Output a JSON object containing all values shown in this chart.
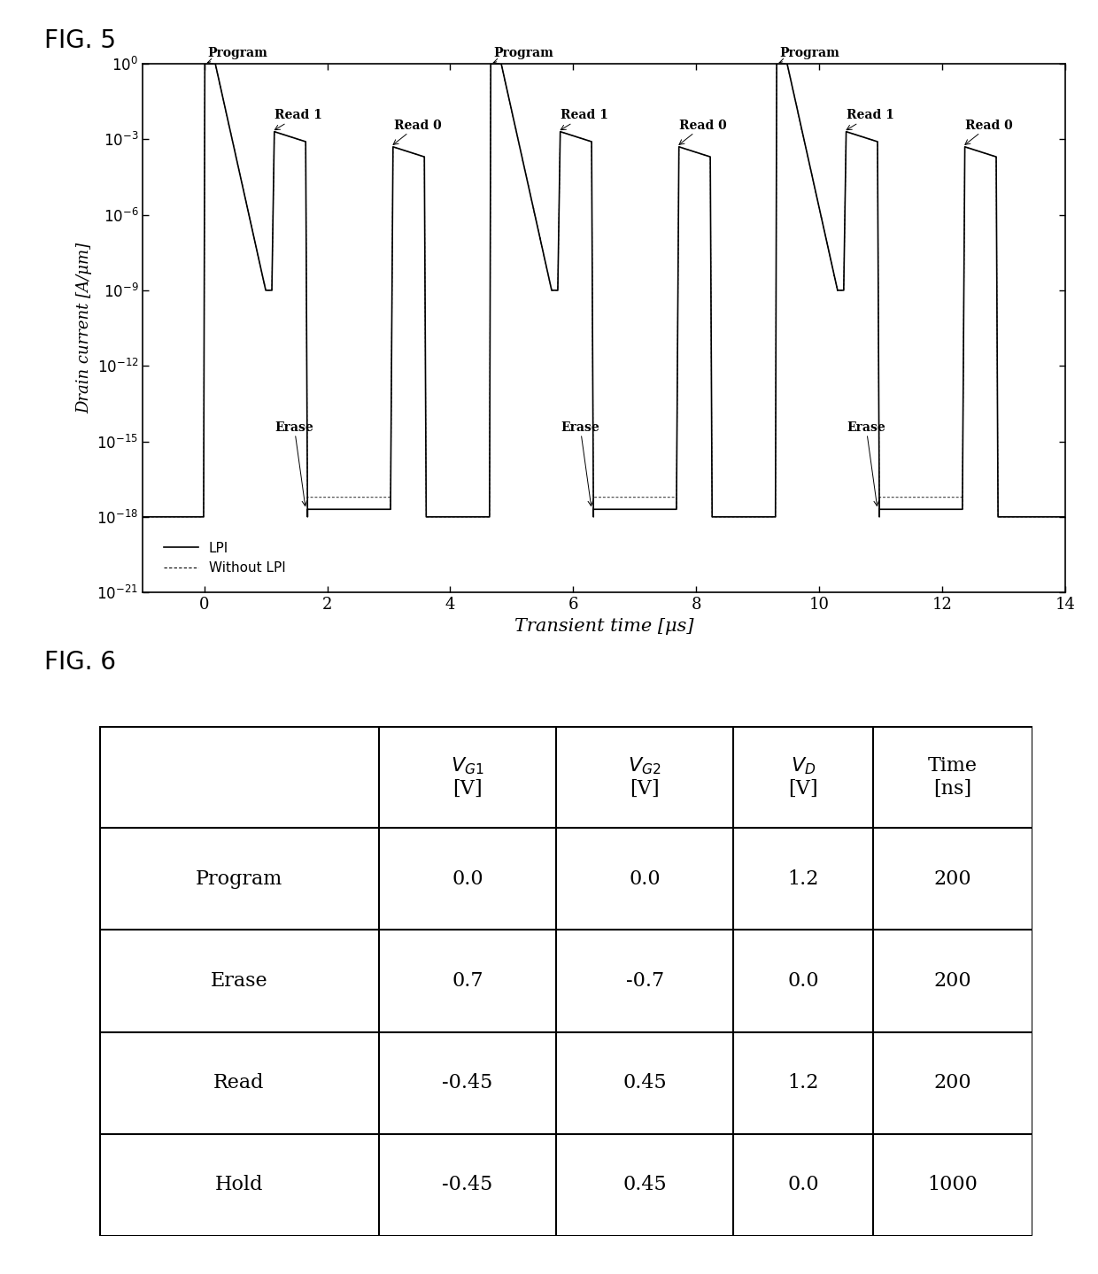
{
  "fig5_title": "FIG. 5",
  "fig6_title": "FIG. 6",
  "xlabel": "Transient time [μs]",
  "ylabel": "Drain current [A/μm]",
  "xmin": -1,
  "xmax": 14,
  "ymin_exp": -21,
  "ymax_exp": 0,
  "yticks_exp": [
    0,
    -3,
    -6,
    -9,
    -12,
    -15,
    -18,
    -21
  ],
  "xticks": [
    0,
    2,
    4,
    6,
    8,
    10,
    12,
    14
  ],
  "legend_lpi": "LPI",
  "legend_without": "Without LPI",
  "table_data": [
    [
      "Program",
      "0.0",
      "0.0",
      "1.2",
      "200"
    ],
    [
      "Erase",
      "0.7",
      "-0.7",
      "0.0",
      "200"
    ],
    [
      "Read",
      "-0.45",
      "0.45",
      "1.2",
      "200"
    ],
    [
      "Hold",
      "-0.45",
      "0.45",
      "0.0",
      "1000"
    ]
  ]
}
